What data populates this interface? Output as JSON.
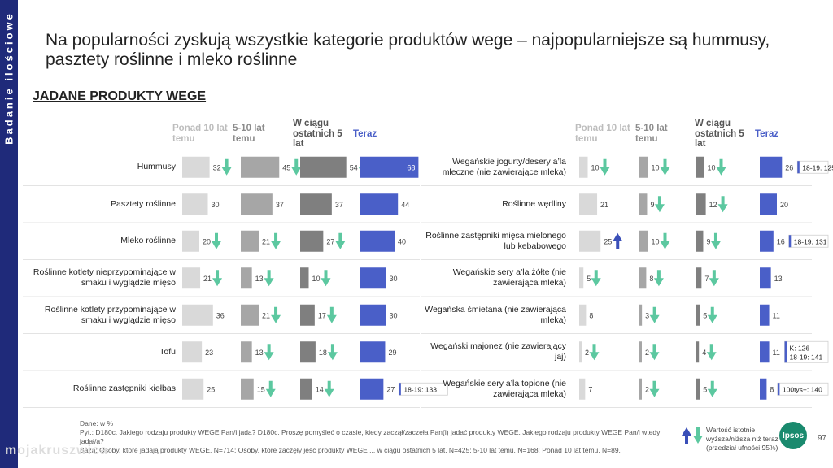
{
  "sidebar_label": "Badanie ilościowe",
  "title": "Na popularności zyskują wszystkie kategorie produktów wege – najpopularniejsze są hummusy, pasztety roślinne i mleko roślinne",
  "subtitle": "JADANE PRODUKTY WEGE",
  "colors": {
    "g1": "#d9d9d9",
    "g2": "#a6a6a6",
    "g3": "#7f7f7f",
    "g4": "#4a5fc8",
    "arrow_down": "#5cc8a0",
    "arrow_up": "#3a4fb8",
    "sidebar": "#1f2a7a"
  },
  "chart_data": {
    "type": "bar",
    "column_headers": [
      "Ponad 10 lat temu",
      "5-10 lat temu",
      "W ciągu ostatnich 5 lat",
      "Teraz"
    ],
    "panels": [
      {
        "rows": [
          {
            "label": "Hummusy",
            "values": [
              32,
              45,
              54,
              68
            ],
            "arrows": [
              "down",
              "down",
              "down",
              ""
            ],
            "note": ""
          },
          {
            "label": "Pasztety roślinne",
            "values": [
              30,
              37,
              37,
              44
            ],
            "arrows": [
              "",
              "",
              "",
              ""
            ],
            "note": ""
          },
          {
            "label": "Mleko roślinne",
            "values": [
              20,
              21,
              27,
              40
            ],
            "arrows": [
              "down",
              "down",
              "down",
              ""
            ],
            "note": ""
          },
          {
            "label": "Roślinne kotlety nieprzypominające w smaku i wyglądzie mięso",
            "values": [
              21,
              13,
              10,
              30
            ],
            "arrows": [
              "down",
              "down",
              "down",
              ""
            ],
            "note": ""
          },
          {
            "label": "Roślinne kotlety przypominające w smaku i wyglądzie mięso",
            "values": [
              36,
              21,
              17,
              30
            ],
            "arrows": [
              "",
              "down",
              "down",
              ""
            ],
            "note": ""
          },
          {
            "label": "Tofu",
            "values": [
              23,
              13,
              18,
              29
            ],
            "arrows": [
              "",
              "down",
              "down",
              ""
            ],
            "note": ""
          },
          {
            "label": "Roślinne zastępniki kiełbas",
            "values": [
              25,
              15,
              14,
              27
            ],
            "arrows": [
              "",
              "down",
              "down",
              ""
            ],
            "note": "18-19: 133"
          }
        ]
      },
      {
        "rows": [
          {
            "label": "Wegańskie jogurty/desery a’la mleczne (nie zawierające mleka)",
            "values": [
              10,
              10,
              10,
              26
            ],
            "arrows": [
              "down",
              "down",
              "down",
              ""
            ],
            "note": "18-19: 125"
          },
          {
            "label": "Roślinne wędliny",
            "values": [
              21,
              9,
              12,
              20
            ],
            "arrows": [
              "",
              "down",
              "down",
              ""
            ],
            "note": ""
          },
          {
            "label": "Roślinne zastępniki mięsa mielonego lub kebabowego",
            "values": [
              25,
              10,
              9,
              16
            ],
            "arrows": [
              "up",
              "down",
              "down",
              ""
            ],
            "note": "18-19: 131"
          },
          {
            "label": "Wegańskie sery a’la żółte (nie zawierająca mleka)",
            "values": [
              5,
              8,
              7,
              13
            ],
            "arrows": [
              "down",
              "down",
              "down",
              ""
            ],
            "note": ""
          },
          {
            "label": "Wegańska śmietana (nie zawierająca mleka)",
            "values": [
              8,
              3,
              5,
              11
            ],
            "arrows": [
              "",
              "down",
              "down",
              ""
            ],
            "note": ""
          },
          {
            "label": "Wegański majonez (nie zawierający jaj)",
            "values": [
              2,
              2,
              4,
              11
            ],
            "arrows": [
              "down",
              "down",
              "down",
              ""
            ],
            "note": "K: 126 18-19: 141"
          },
          {
            "label": "Wegańskie sery a’la topione (nie zawierająca mleka)",
            "values": [
              7,
              2,
              5,
              8
            ],
            "arrows": [
              "",
              "down",
              "down",
              ""
            ],
            "note": "100tys+: 140"
          }
        ]
      }
    ]
  },
  "footer": {
    "l1": "Dane: w %",
    "l2": "Pyt.: D180c. Jakiego rodzaju produkty WEGE Pan/i jada? D180c. Proszę pomyśleć o czasie, kiedy zaczął/zaczęła Pan(i) jadać produkty WEGE. Jakiego rodzaju produkty WEGE Pan/i wtedy jadał/a?",
    "l3": "Baza: Osoby, które jadają produkty WEGE, N=714; Osoby, które zaczęły jeść produkty WEGE ... w ciągu ostatnich 5 lat, N=425; 5-10 lat temu, N=168; Ponad 10 lat temu, N=89."
  },
  "legend_text": "Wartość istotnie wyższa/niższa niż teraz (przedział ufności 95%)",
  "logo_text": "Ipsos",
  "page_number": "97",
  "watermark": "mojakruszwica"
}
